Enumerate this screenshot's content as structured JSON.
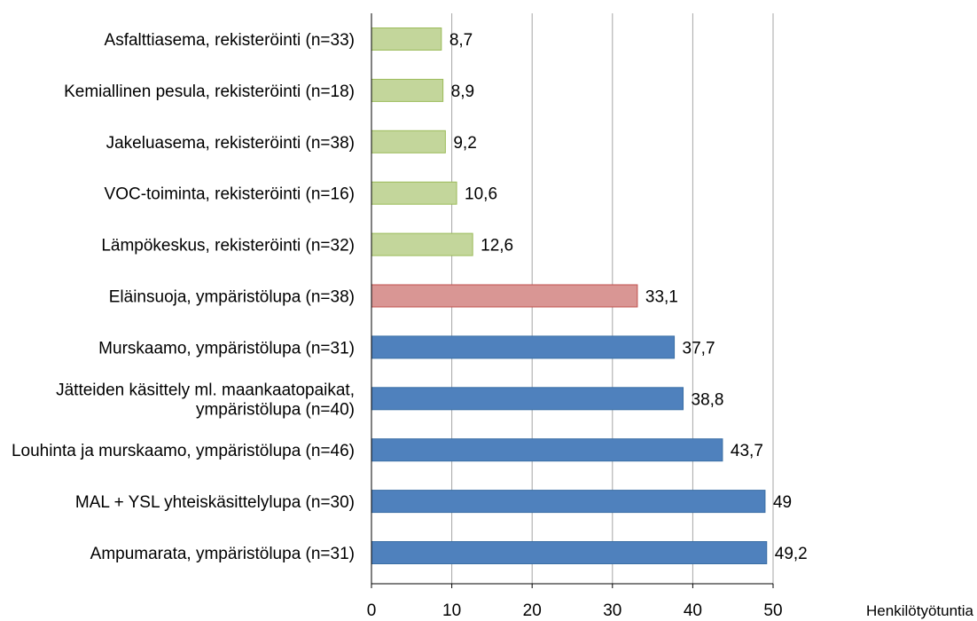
{
  "chart_data": {
    "type": "bar",
    "orientation": "horizontal",
    "xlabel": "Henkilötyötuntia",
    "xlim": [
      0,
      50
    ],
    "xticks": [
      0,
      10,
      20,
      30,
      40,
      50
    ],
    "grid": "vertical",
    "legend": "none",
    "categories": [
      [
        "Asfalttiasema, rekisteröinti (n=33)"
      ],
      [
        "Kemiallinen pesula, rekisteröinti (n=18)"
      ],
      [
        "Jakeluasema, rekisteröinti (n=38)"
      ],
      [
        "VOC-toiminta, rekisteröinti (n=16)"
      ],
      [
        "Lämpökeskus, rekisteröinti (n=32)"
      ],
      [
        "Eläinsuoja, ympäristölupa (n=38)"
      ],
      [
        "Murskaamo, ympäristölupa (n=31)"
      ],
      [
        "Jätteiden käsittely ml. maankaatopaikat,",
        "ympäristölupa (n=40)"
      ],
      [
        "Louhinta ja murskaamo, ympäristölupa (n=46)"
      ],
      [
        "MAL + YSL yhteiskäsittelylupa (n=30)"
      ],
      [
        "Ampumarata, ympäristölupa (n=31)"
      ]
    ],
    "values": [
      8.7,
      8.9,
      9.2,
      10.6,
      12.6,
      33.1,
      37.7,
      38.8,
      43.7,
      49,
      49.2
    ],
    "value_labels": [
      "8,7",
      "8,9",
      "9,2",
      "10,6",
      "12,6",
      "33,1",
      "37,7",
      "38,8",
      "43,7",
      "49",
      "49,2"
    ],
    "bar_colors": [
      "#c3d69b",
      "#c3d69b",
      "#c3d69b",
      "#c3d69b",
      "#c3d69b",
      "#d99694",
      "#4f81bd",
      "#4f81bd",
      "#4f81bd",
      "#4f81bd",
      "#4f81bd"
    ],
    "bar_border_colors": [
      "#9bbb59",
      "#9bbb59",
      "#9bbb59",
      "#9bbb59",
      "#9bbb59",
      "#c0504d",
      "#3a6ea5",
      "#3a6ea5",
      "#3a6ea5",
      "#3a6ea5",
      "#3a6ea5"
    ],
    "gridline_color": "#a6a6a6",
    "axis_color": "#000000"
  }
}
